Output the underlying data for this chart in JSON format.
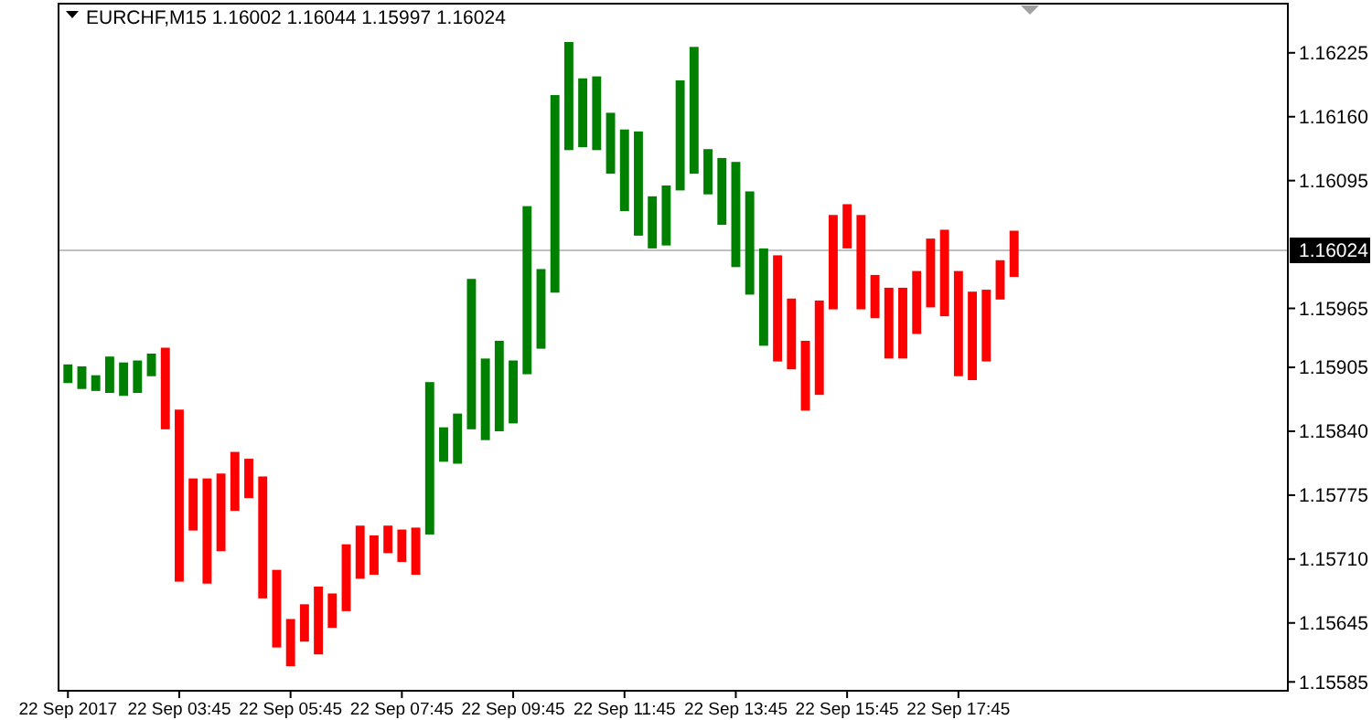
{
  "chart_data": {
    "type": "bar",
    "title": "EURCHF,M15  1.16002 1.16044 1.15997 1.16024",
    "categories": [
      "22 Sep 2017",
      null,
      null,
      null,
      null,
      null,
      null,
      null,
      "22 Sep 03:45",
      null,
      null,
      null,
      null,
      null,
      null,
      null,
      "22 Sep 05:45",
      null,
      null,
      null,
      null,
      null,
      null,
      null,
      "22 Sep 07:45",
      null,
      null,
      null,
      null,
      null,
      null,
      null,
      "22 Sep 09:45",
      null,
      null,
      null,
      null,
      null,
      null,
      null,
      "22 Sep 11:45",
      null,
      null,
      null,
      null,
      null,
      null,
      null,
      "22 Sep 13:45",
      null,
      null,
      null,
      null,
      null,
      null,
      null,
      "22 Sep 15:45",
      null,
      null,
      null,
      null,
      null,
      null,
      null,
      "22 Sep 17:45",
      null,
      null,
      null,
      null,
      null,
      null,
      null,
      null,
      null,
      null,
      null,
      null,
      null,
      null,
      null,
      null,
      null,
      null,
      null,
      null,
      null,
      null,
      null
    ],
    "base": [
      1.15889,
      1.15883,
      1.15881,
      1.15879,
      1.15876,
      1.15879,
      1.15896,
      1.15842,
      1.15687,
      1.15739,
      1.15685,
      1.15718,
      1.15759,
      1.15772,
      1.1567,
      1.1562,
      1.15601,
      1.15626,
      1.15613,
      1.1564,
      1.15657,
      1.1569,
      1.15694,
      1.15716,
      1.15707,
      1.15694,
      1.15735,
      1.15809,
      1.15807,
      1.15842,
      1.15831,
      1.1584,
      1.15848,
      1.15898,
      1.15924,
      1.15981,
      1.16126,
      1.16129,
      1.16126,
      1.16102,
      1.16064,
      1.16039,
      1.16026,
      1.16029,
      1.16085,
      1.16102,
      1.16081,
      1.1605,
      1.16007,
      1.15979,
      1.15927,
      1.15911,
      1.15903,
      1.15861,
      1.15877,
      1.15964,
      1.16026,
      1.15964,
      1.15955,
      1.15914,
      1.15914,
      1.15939,
      1.15966,
      1.15957,
      1.15896,
      1.15892,
      1.15911,
      1.15974,
      1.15997,
      null,
      null,
      null,
      null,
      null,
      null,
      null,
      null,
      null,
      null,
      null,
      null,
      null,
      null,
      null,
      null,
      null,
      null,
      null
    ],
    "values": [
      0.00019,
      0.00023,
      0.00016,
      0.00037,
      0.00034,
      0.00033,
      0.00023,
      0.00083,
      0.00175,
      0.00053,
      0.00107,
      0.00079,
      0.0006,
      0.0004,
      0.00124,
      0.00079,
      0.00048,
      0.00038,
      0.00069,
      0.00035,
      0.00068,
      0.00054,
      0.0004,
      0.00028,
      0.00033,
      0.00048,
      0.00155,
      0.00035,
      0.00051,
      0.00153,
      0.00083,
      0.00092,
      0.00064,
      0.00171,
      0.00081,
      0.00201,
      0.0011,
      0.0007,
      0.00075,
      0.00062,
      0.00083,
      0.00106,
      0.00053,
      0.00061,
      0.00112,
      0.00129,
      0.00046,
      0.00068,
      0.00107,
      0.00105,
      0.00099,
      0.00108,
      0.00072,
      0.00071,
      0.00096,
      0.00096,
      0.00045,
      0.00096,
      0.00044,
      0.00072,
      0.00072,
      0.00064,
      0.0007,
      0.00088,
      0.00107,
      0.0009,
      0.00073,
      0.0004,
      0.00047,
      null,
      null,
      null,
      null,
      null,
      null,
      null,
      null,
      null,
      null,
      null,
      null,
      null,
      null,
      null,
      null,
      null,
      null,
      null
    ],
    "colors": [
      "#008000",
      "#008000",
      "#008000",
      "#008000",
      "#008000",
      "#008000",
      "#008000",
      "#ff0000",
      "#ff0000",
      "#ff0000",
      "#ff0000",
      "#ff0000",
      "#ff0000",
      "#ff0000",
      "#ff0000",
      "#ff0000",
      "#ff0000",
      "#ff0000",
      "#ff0000",
      "#ff0000",
      "#ff0000",
      "#ff0000",
      "#ff0000",
      "#ff0000",
      "#ff0000",
      "#ff0000",
      "#008000",
      "#008000",
      "#008000",
      "#008000",
      "#008000",
      "#008000",
      "#008000",
      "#008000",
      "#008000",
      "#008000",
      "#008000",
      "#008000",
      "#008000",
      "#008000",
      "#008000",
      "#008000",
      "#008000",
      "#008000",
      "#008000",
      "#008000",
      "#008000",
      "#008000",
      "#008000",
      "#008000",
      "#008000",
      "#ff0000",
      "#ff0000",
      "#ff0000",
      "#ff0000",
      "#ff0000",
      "#ff0000",
      "#ff0000",
      "#ff0000",
      "#ff0000",
      "#ff0000",
      "#ff0000",
      "#ff0000",
      "#ff0000",
      "#ff0000",
      "#ff0000",
      "#ff0000",
      "#ff0000",
      "#ff0000",
      null,
      null,
      null,
      null,
      null,
      null,
      null,
      null,
      null,
      null,
      null,
      null,
      null,
      null,
      null,
      null,
      null,
      null,
      null
    ],
    "ylim": [
      1.15576,
      1.16275
    ],
    "yticks": [
      1.16225,
      {
        "value": 1.1616,
        "label": "1.16160"
      },
      1.16095,
      1.15965,
      1.15905,
      {
        "value": 1.1584,
        "label": "1.15840"
      },
      1.15775,
      {
        "value": 1.1571,
        "label": "1.15710"
      },
      1.15645,
      1.15585
    ],
    "ref_lines": [
      {
        "axis": "y",
        "value": 1.16024,
        "label": "1.16024",
        "color": "#c0c0c0"
      }
    ],
    "grid": false
  }
}
